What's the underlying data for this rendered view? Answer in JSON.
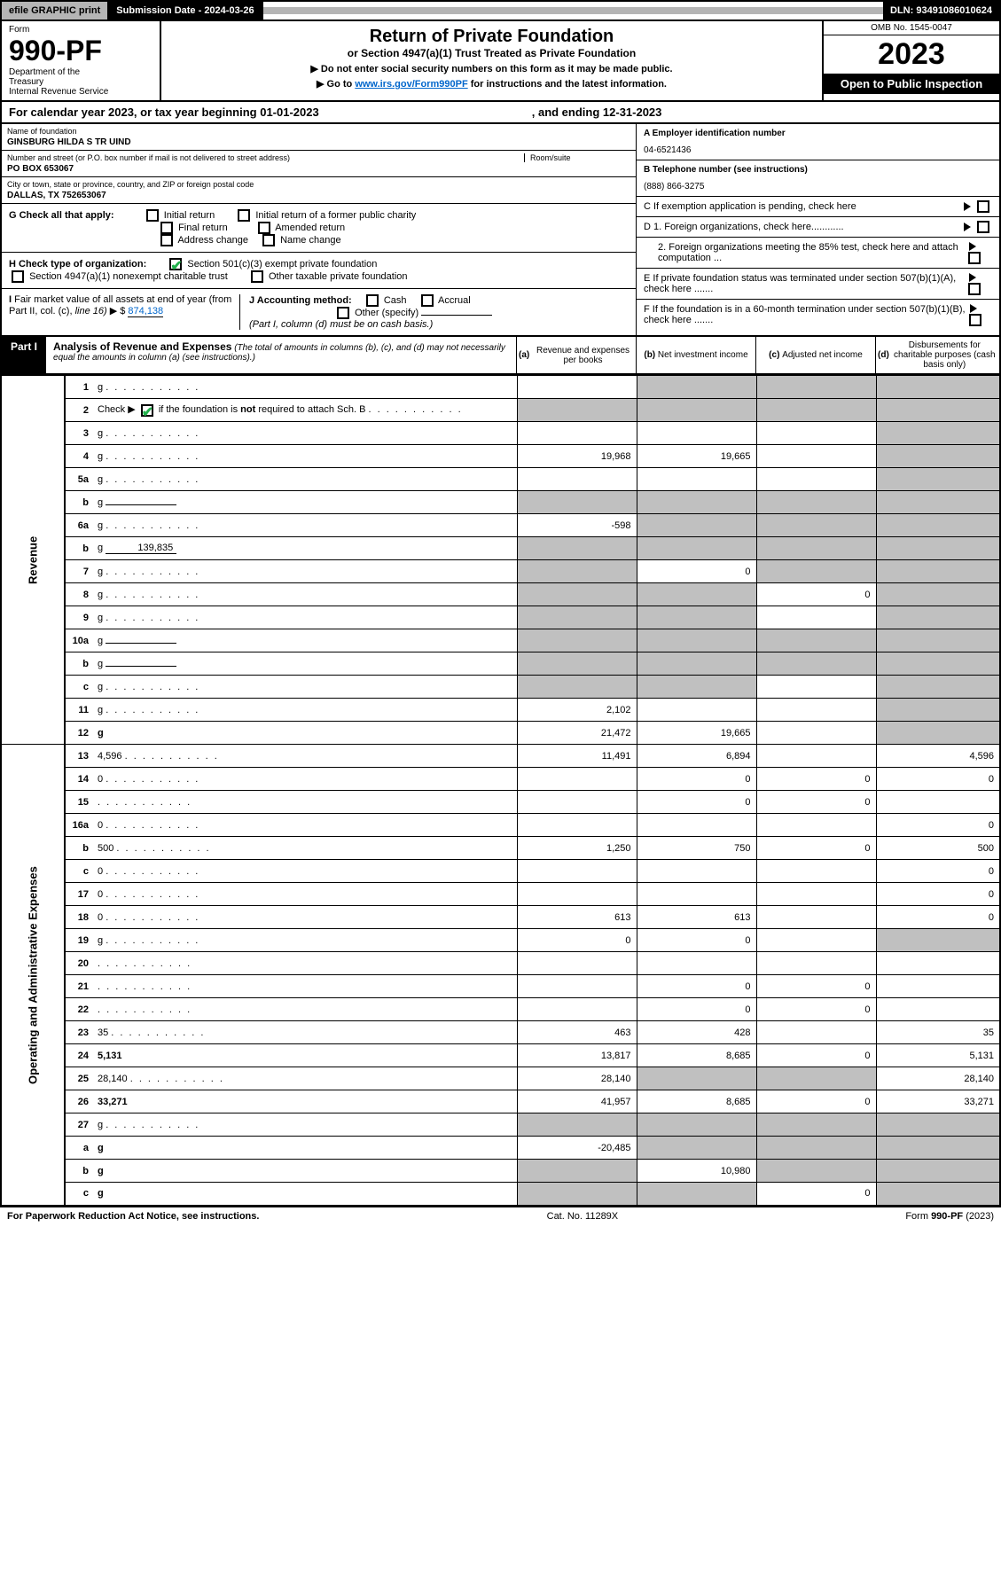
{
  "topbar": {
    "efile": "efile GRAPHIC print",
    "subdate_label": "Submission Date - 2024-03-26",
    "dln": "DLN: 93491086010624"
  },
  "header": {
    "form_label": "Form",
    "form_no": "990-PF",
    "dept": "Department of the Treasury\nInternal Revenue Service",
    "title": "Return of Private Foundation",
    "subtitle": "or Section 4947(a)(1) Trust Treated as Private Foundation",
    "instr1": "▶ Do not enter social security numbers on this form as it may be made public.",
    "instr2_pre": "▶ Go to ",
    "instr2_link": "www.irs.gov/Form990PF",
    "instr2_post": " for instructions and the latest information.",
    "omb": "OMB No. 1545-0047",
    "year": "2023",
    "inspect": "Open to Public Inspection"
  },
  "calyear": {
    "text": "For calendar year 2023, or tax year beginning 01-01-2023",
    "ending": ", and ending 12-31-2023"
  },
  "info": {
    "name_lbl": "Name of foundation",
    "name_val": "GINSBURG HILDA S TR UIND",
    "addr_lbl": "Number and street (or P.O. box number if mail is not delivered to street address)",
    "addr_val": "PO BOX 653067",
    "room_lbl": "Room/suite",
    "city_lbl": "City or town, state or province, country, and ZIP or foreign postal code",
    "city_val": "DALLAS, TX  752653067",
    "a_lbl": "A Employer identification number",
    "a_val": "04-6521436",
    "b_lbl": "B Telephone number (see instructions)",
    "b_val": "(888) 866-3275",
    "c_lbl": "C If exemption application is pending, check here",
    "d1_lbl": "D 1. Foreign organizations, check here............",
    "d2_lbl": "2. Foreign organizations meeting the 85% test, check here and attach computation ...",
    "e_lbl": "E If private foundation status was terminated under section 507(b)(1)(A), check here .......",
    "f_lbl": "F If the foundation is in a 60-month termination under section 507(b)(1)(B), check here .......",
    "g_lbl": "G Check all that apply:",
    "g_opts": [
      "Initial return",
      "Initial return of a former public charity",
      "Final return",
      "Amended return",
      "Address change",
      "Name change"
    ],
    "h_lbl": "H Check type of organization:",
    "h_opt1": "Section 501(c)(3) exempt private foundation",
    "h_opt2": "Section 4947(a)(1) nonexempt charitable trust",
    "h_opt3": "Other taxable private foundation",
    "i_lbl": "I Fair market value of all assets at end of year (from Part II, col. (c), line 16) ▶ $",
    "i_val": "874,138",
    "j_lbl": "J Accounting method:",
    "j_opts": [
      "Cash",
      "Accrual",
      "Other (specify)"
    ],
    "j_note": "(Part I, column (d) must be on cash basis.)"
  },
  "part1": {
    "label": "Part I",
    "title": "Analysis of Revenue and Expenses",
    "title_note": "(The total of amounts in columns (b), (c), and (d) may not necessarily equal the amounts in column (a) (see instructions).)",
    "col_a": "(a) Revenue and expenses per books",
    "col_b": "(b) Net investment income",
    "col_c": "(c) Adjusted net income",
    "col_d": "(d) Disbursements for charitable purposes (cash basis only)"
  },
  "sides": {
    "revenue": "Revenue",
    "expenses": "Operating and Administrative Expenses"
  },
  "rows": [
    {
      "n": "1",
      "d": "g",
      "a": "",
      "b": "g",
      "c": "g"
    },
    {
      "n": "2",
      "d": "g",
      "a": "g",
      "b": "g",
      "c": "g",
      "checked": true
    },
    {
      "n": "3",
      "d": "g",
      "a": "",
      "b": "",
      "c": ""
    },
    {
      "n": "4",
      "d": "g",
      "a": "19,968",
      "b": "19,665",
      "c": ""
    },
    {
      "n": "5a",
      "d": "g",
      "a": "",
      "b": "",
      "c": ""
    },
    {
      "n": "b",
      "d": "g",
      "a": "g",
      "b": "g",
      "c": "g",
      "inline": ""
    },
    {
      "n": "6a",
      "d": "g",
      "a": "-598",
      "b": "g",
      "c": "g"
    },
    {
      "n": "b",
      "d": "g",
      "a": "g",
      "b": "g",
      "c": "g",
      "inline": "139,835"
    },
    {
      "n": "7",
      "d": "g",
      "a": "g",
      "b": "0",
      "c": "g"
    },
    {
      "n": "8",
      "d": "g",
      "a": "g",
      "b": "g",
      "c": "0"
    },
    {
      "n": "9",
      "d": "g",
      "a": "g",
      "b": "g",
      "c": ""
    },
    {
      "n": "10a",
      "d": "g",
      "a": "g",
      "b": "g",
      "c": "g",
      "inline": ""
    },
    {
      "n": "b",
      "d": "g",
      "a": "g",
      "b": "g",
      "c": "g",
      "inline": ""
    },
    {
      "n": "c",
      "d": "g",
      "a": "g",
      "b": "g",
      "c": ""
    },
    {
      "n": "11",
      "d": "g",
      "a": "2,102",
      "b": "",
      "c": ""
    },
    {
      "n": "12",
      "d": "g",
      "a": "21,472",
      "b": "19,665",
      "c": "",
      "bold": true
    }
  ],
  "exp_rows": [
    {
      "n": "13",
      "d": "4,596",
      "a": "11,491",
      "b": "6,894",
      "c": ""
    },
    {
      "n": "14",
      "d": "0",
      "a": "",
      "b": "0",
      "c": "0"
    },
    {
      "n": "15",
      "d": "",
      "a": "",
      "b": "0",
      "c": "0"
    },
    {
      "n": "16a",
      "d": "0",
      "a": "",
      "b": "",
      "c": ""
    },
    {
      "n": "b",
      "d": "500",
      "a": "1,250",
      "b": "750",
      "c": "0"
    },
    {
      "n": "c",
      "d": "0",
      "a": "",
      "b": "",
      "c": ""
    },
    {
      "n": "17",
      "d": "0",
      "a": "",
      "b": "",
      "c": ""
    },
    {
      "n": "18",
      "d": "0",
      "a": "613",
      "b": "613",
      "c": ""
    },
    {
      "n": "19",
      "d": "g",
      "a": "0",
      "b": "0",
      "c": ""
    },
    {
      "n": "20",
      "d": "",
      "a": "",
      "b": "",
      "c": ""
    },
    {
      "n": "21",
      "d": "",
      "a": "",
      "b": "0",
      "c": "0"
    },
    {
      "n": "22",
      "d": "",
      "a": "",
      "b": "0",
      "c": "0"
    },
    {
      "n": "23",
      "d": "35",
      "a": "463",
      "b": "428",
      "c": ""
    },
    {
      "n": "24",
      "d": "5,131",
      "a": "13,817",
      "b": "8,685",
      "c": "0",
      "bold": true
    },
    {
      "n": "25",
      "d": "28,140",
      "a": "28,140",
      "b": "g",
      "c": "g"
    },
    {
      "n": "26",
      "d": "33,271",
      "a": "41,957",
      "b": "8,685",
      "c": "0",
      "bold": true
    },
    {
      "n": "27",
      "d": "g",
      "a": "g",
      "b": "g",
      "c": "g"
    },
    {
      "n": "a",
      "d": "g",
      "a": "-20,485",
      "b": "g",
      "c": "g",
      "bold": true
    },
    {
      "n": "b",
      "d": "g",
      "a": "g",
      "b": "10,980",
      "c": "g",
      "bold": true
    },
    {
      "n": "c",
      "d": "g",
      "a": "g",
      "b": "g",
      "c": "0",
      "bold": true
    }
  ],
  "footer": {
    "left": "For Paperwork Reduction Act Notice, see instructions.",
    "mid": "Cat. No. 11289X",
    "right": "Form 990-PF (2023)"
  },
  "colors": {
    "grey": "#c0c0c0",
    "headerbg": "#b5b5b5",
    "link": "#0066cc",
    "check": "#22b14c"
  }
}
